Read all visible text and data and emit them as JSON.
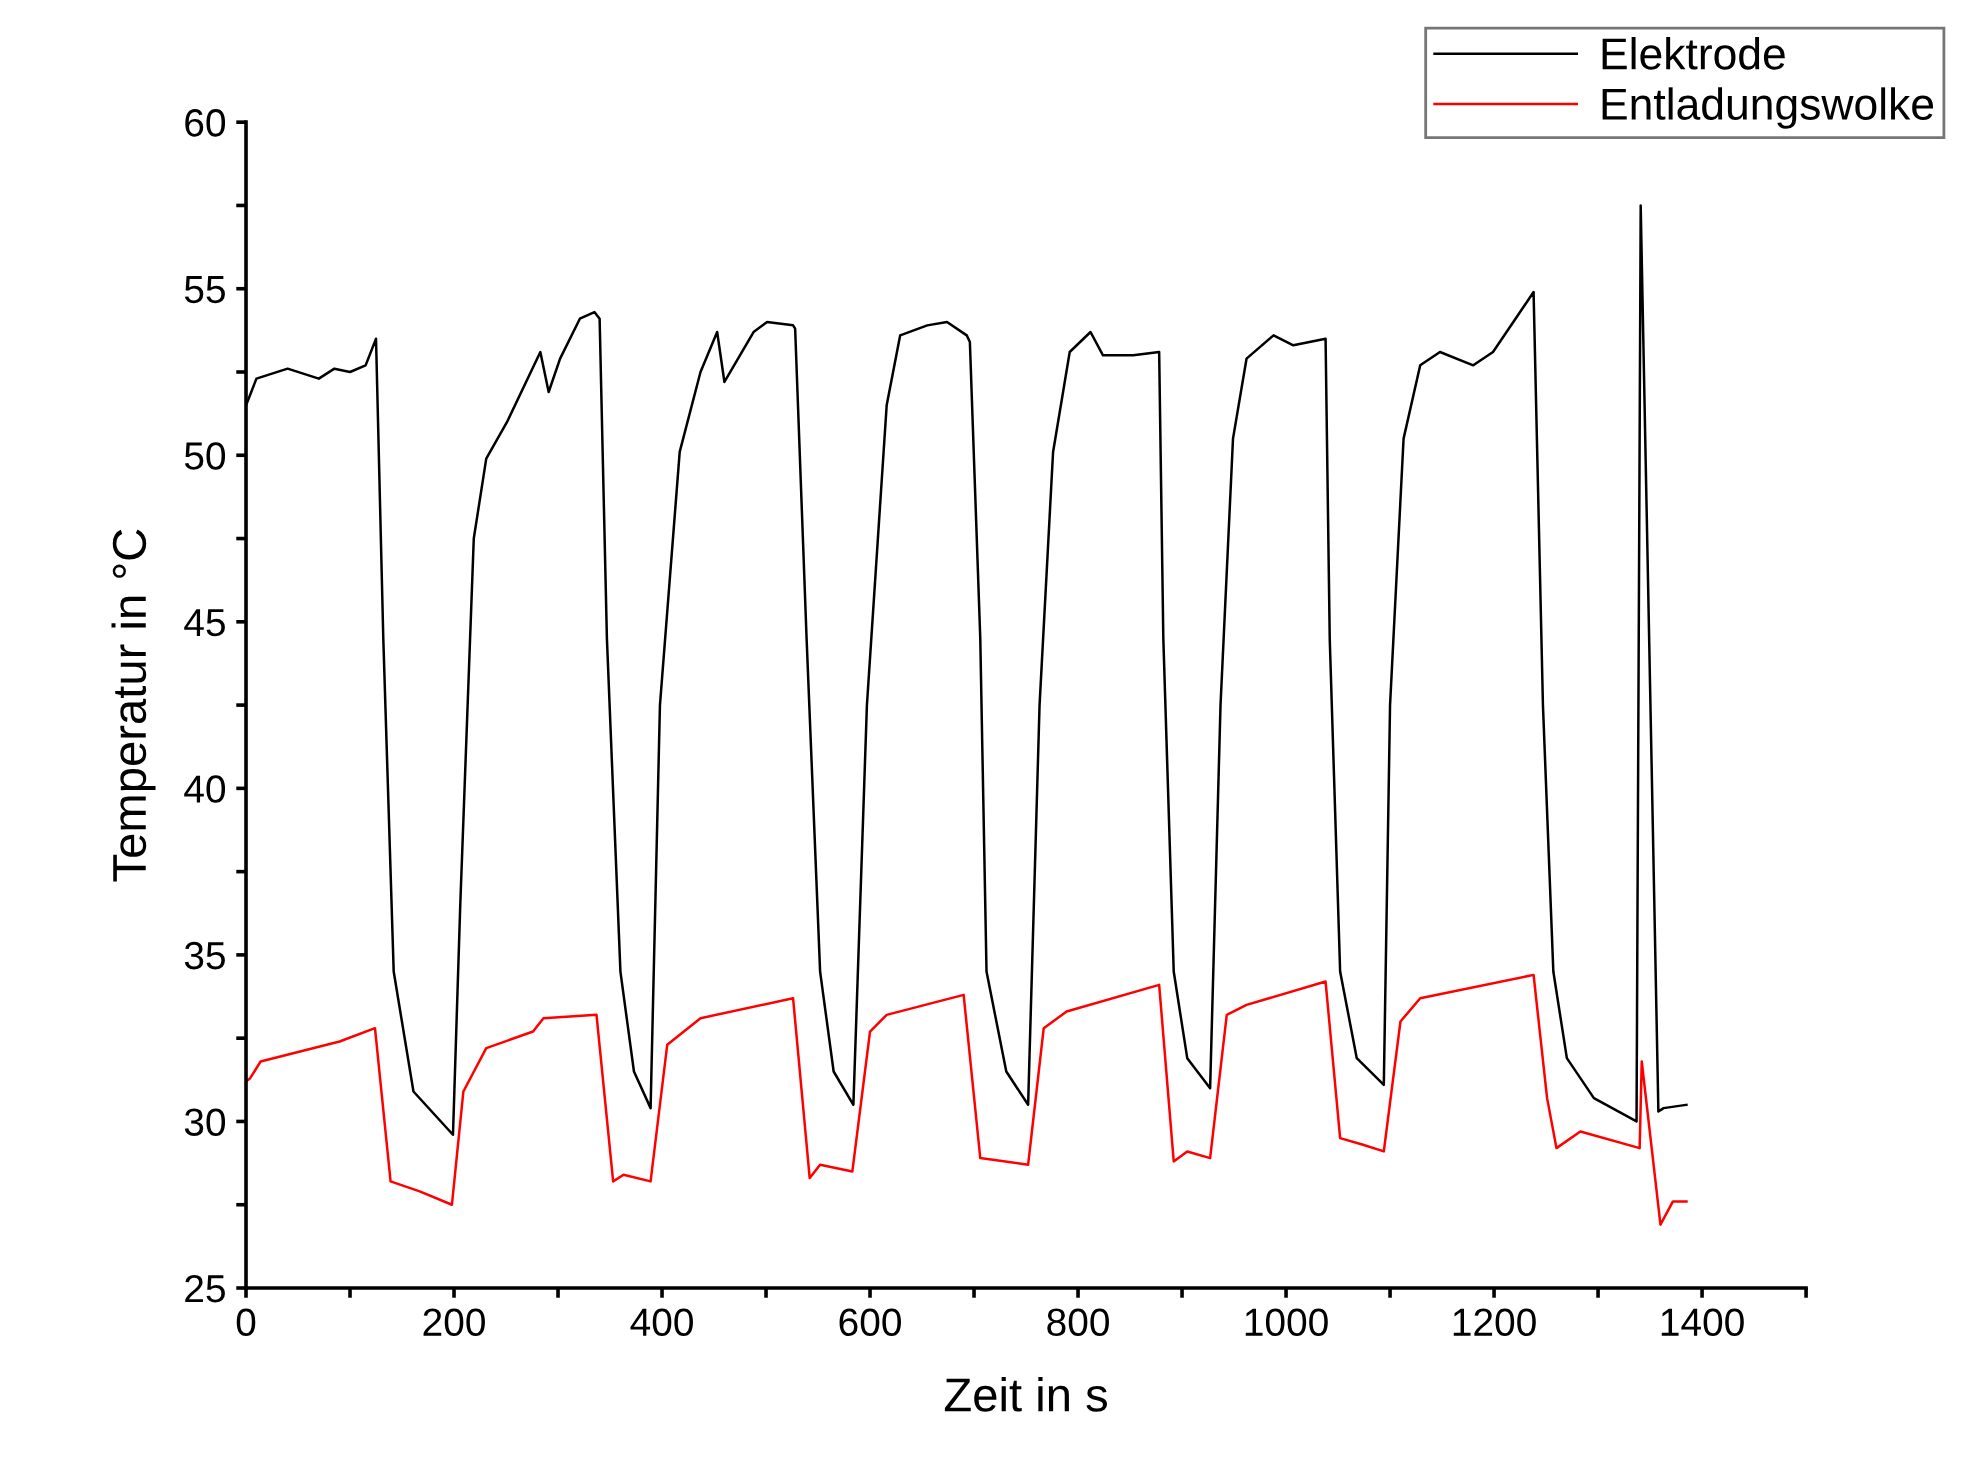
{
  "chart_data": {
    "type": "line",
    "xlabel": "Zeit in s",
    "ylabel": "Temperatur in °C",
    "xlim": [
      0,
      1500
    ],
    "ylim": [
      25,
      60
    ],
    "xticks": [
      0,
      {
        "value": 100,
        "label": null
      },
      200,
      {
        "value": 300,
        "label": null
      },
      400,
      {
        "value": 500,
        "label": null
      },
      600,
      {
        "value": 700,
        "label": null
      },
      800,
      {
        "value": 900,
        "label": null
      },
      1000,
      {
        "value": 1100,
        "label": null
      },
      1200,
      {
        "value": 1300,
        "label": null
      },
      1400,
      {
        "value": 1500,
        "label": null
      }
    ],
    "yticks": [
      25,
      {
        "value": 27.5,
        "label": null
      },
      30,
      {
        "value": 32.5,
        "label": null
      },
      35,
      {
        "value": 37.5,
        "label": null
      },
      40,
      {
        "value": 42.5,
        "label": null
      },
      45,
      {
        "value": 47.5,
        "label": null
      },
      50,
      {
        "value": 52.5,
        "label": null
      },
      55,
      {
        "value": 57.5,
        "label": null
      },
      60
    ],
    "grid": false,
    "legend": "top right",
    "marker": "none",
    "line_style": "solid",
    "series": [
      {
        "name": "Elektrode",
        "color": "#000000",
        "x": [
          0,
          10,
          40,
          70,
          85,
          100,
          115,
          125,
          132,
          142,
          161,
          199,
          206,
          219,
          231,
          251,
          283,
          291,
          302,
          321,
          335,
          340,
          347,
          360,
          373,
          389,
          398,
          417,
          437,
          453,
          460,
          488,
          501,
          526,
          528,
          539,
          552,
          565,
          584,
          597,
          616,
          629,
          655,
          674,
          693,
          696,
          706,
          712,
          731,
          752,
          763,
          776,
          792,
          812,
          824,
          853,
          878,
          882,
          892,
          905,
          927,
          937,
          949,
          962,
          988,
          1007,
          1038,
          1042,
          1052,
          1068,
          1094,
          1100,
          1113,
          1129,
          1148,
          1180,
          1199,
          1238,
          1247,
          1257,
          1270,
          1296,
          1337,
          1341,
          1358,
          1363,
          1385
        ],
        "values": [
          51.5,
          52.3,
          52.6,
          52.3,
          52.6,
          52.5,
          52.7,
          53.5,
          44.5,
          34.5,
          30.9,
          29.6,
          36.5,
          47.5,
          49.9,
          51.0,
          53.1,
          51.9,
          52.9,
          54.1,
          54.3,
          54.1,
          44.5,
          34.5,
          31.5,
          30.4,
          42.5,
          50.1,
          52.5,
          53.7,
          52.2,
          53.7,
          54.0,
          53.9,
          53.8,
          44.5,
          34.5,
          31.5,
          30.5,
          42.5,
          51.5,
          53.6,
          53.9,
          54.0,
          53.6,
          53.4,
          44.5,
          34.5,
          31.5,
          30.5,
          42.5,
          50.1,
          53.1,
          53.7,
          53.0,
          53.0,
          53.1,
          44.5,
          34.5,
          31.9,
          31.0,
          42.5,
          50.5,
          52.9,
          53.6,
          53.3,
          53.5,
          44.5,
          34.5,
          31.9,
          31.1,
          42.5,
          50.5,
          52.7,
          53.1,
          52.7,
          53.1,
          54.9,
          42.5,
          34.5,
          31.9,
          30.7,
          30.0,
          57.5,
          30.3,
          30.4,
          30.5
        ]
      },
      {
        "name": "Entladungswolke",
        "color": "#ff0000",
        "x": [
          0,
          4,
          14,
          52,
          90,
          124,
          139,
          167,
          198,
          209,
          231,
          276,
          286,
          337,
          353,
          363,
          389,
          405,
          437,
          526,
          542,
          552,
          583,
          600,
          616,
          690,
          706,
          752,
          767,
          789,
          878,
          892,
          905,
          927,
          943,
          962,
          1038,
          1052,
          1074,
          1094,
          1110,
          1129,
          1238,
          1251,
          1260,
          1283,
          1340,
          1342,
          1360,
          1372,
          1385
        ],
        "values": [
          31.2,
          31.3,
          31.8,
          32.1,
          32.4,
          32.8,
          28.2,
          27.9,
          27.5,
          30.9,
          32.2,
          32.7,
          33.1,
          33.2,
          28.2,
          28.4,
          28.2,
          32.3,
          33.1,
          33.7,
          28.3,
          28.7,
          28.5,
          32.7,
          33.2,
          33.8,
          28.9,
          28.7,
          32.8,
          33.3,
          34.1,
          28.8,
          29.1,
          28.9,
          33.2,
          33.5,
          34.2,
          29.5,
          29.3,
          29.1,
          33.0,
          33.7,
          34.4,
          30.7,
          29.2,
          29.7,
          29.2,
          31.8,
          26.9,
          27.6,
          27.6
        ]
      }
    ]
  }
}
